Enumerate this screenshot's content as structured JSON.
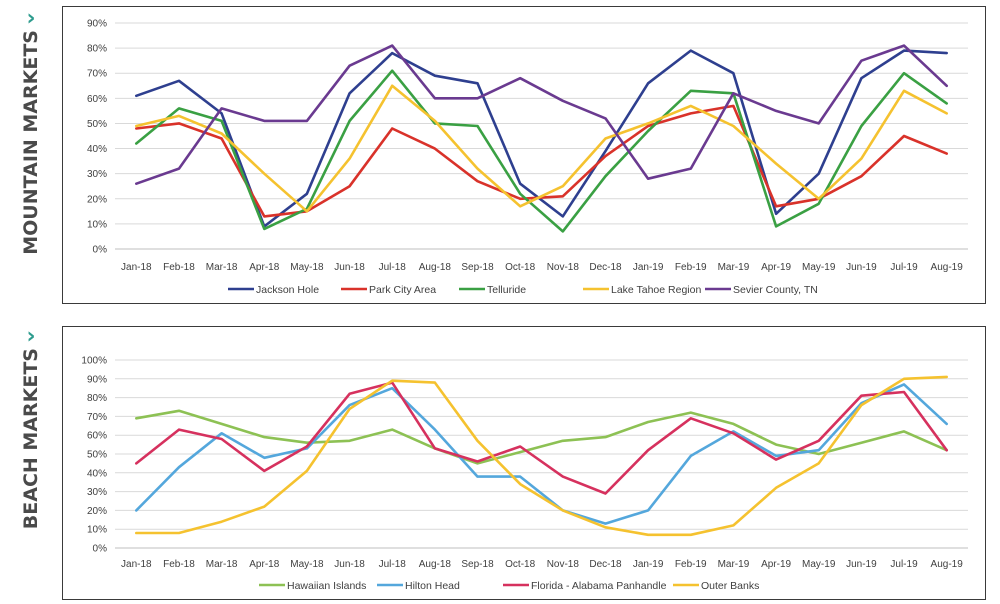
{
  "panels": {
    "top": {
      "label": "MOUNTAIN MARKETS"
    },
    "bottom": {
      "label": "BEACH MARKETS"
    }
  },
  "chart_data": [
    {
      "type": "line",
      "categories": [
        "Jan-18",
        "Feb-18",
        "Mar-18",
        "Apr-18",
        "May-18",
        "Jun-18",
        "Jul-18",
        "Aug-18",
        "Sep-18",
        "Oct-18",
        "Nov-18",
        "Dec-18",
        "Jan-19",
        "Feb-19",
        "Mar-19",
        "Apr-19",
        "May-19",
        "Jun-19",
        "Jul-19",
        "Aug-19"
      ],
      "ylim": [
        0,
        90
      ],
      "yticks": [
        "0%",
        "10%",
        "20%",
        "30%",
        "40%",
        "50%",
        "60%",
        "70%",
        "80%",
        "90%"
      ],
      "grid": true,
      "legend_position": "bottom",
      "series": [
        {
          "name": "Jackson Hole",
          "color": "#2e3f8f",
          "values": [
            61,
            67,
            54,
            9,
            22,
            62,
            78,
            69,
            66,
            26,
            13,
            39,
            66,
            79,
            70,
            14,
            30,
            68,
            79,
            78
          ]
        },
        {
          "name": "Park City Area",
          "color": "#d9322a",
          "values": [
            48,
            50,
            44,
            13,
            15,
            25,
            48,
            40,
            27,
            20,
            21,
            37,
            49,
            54,
            57,
            17,
            20,
            29,
            45,
            38
          ]
        },
        {
          "name": "Telluride",
          "color": "#3aa043",
          "values": [
            42,
            56,
            51,
            8,
            16,
            51,
            71,
            50,
            49,
            22,
            7,
            29,
            47,
            63,
            62,
            9,
            18,
            49,
            70,
            58
          ]
        },
        {
          "name": "Lake Tahoe Region",
          "color": "#f5c22f",
          "values": [
            49,
            53,
            46,
            30,
            15,
            36,
            65,
            51,
            32,
            17,
            25,
            44,
            50,
            57,
            49,
            34,
            20,
            36,
            63,
            54
          ]
        },
        {
          "name": "Sevier County, TN",
          "color": "#6a3a90",
          "values": [
            26,
            32,
            56,
            51,
            51,
            73,
            81,
            60,
            60,
            68,
            59,
            52,
            28,
            32,
            62,
            55,
            50,
            75,
            81,
            65
          ]
        }
      ]
    },
    {
      "type": "line",
      "categories": [
        "Jan-18",
        "Feb-18",
        "Mar-18",
        "Apr-18",
        "May-18",
        "Jun-18",
        "Jul-18",
        "Aug-18",
        "Sep-18",
        "Oct-18",
        "Nov-18",
        "Dec-18",
        "Jan-19",
        "Feb-19",
        "Mar-19",
        "Apr-19",
        "May-19",
        "Jun-19",
        "Jul-19",
        "Aug-19"
      ],
      "ylim": [
        0,
        100
      ],
      "yticks": [
        "0%",
        "10%",
        "20%",
        "30%",
        "40%",
        "50%",
        "60%",
        "70%",
        "80%",
        "90%",
        "100%"
      ],
      "grid": true,
      "legend_position": "bottom",
      "series": [
        {
          "name": "Hawaiian Islands",
          "color": "#8dc154",
          "values": [
            69,
            73,
            66,
            59,
            56,
            57,
            63,
            53,
            45,
            51,
            57,
            59,
            67,
            72,
            66,
            55,
            50,
            56,
            62,
            52
          ]
        },
        {
          "name": "Hilton Head",
          "color": "#54a7dc",
          "values": [
            20,
            43,
            61,
            48,
            53,
            76,
            85,
            63,
            38,
            38,
            20,
            13,
            20,
            49,
            62,
            49,
            52,
            77,
            87,
            66
          ]
        },
        {
          "name": "Florida - Alabama Panhandle",
          "color": "#d6315e",
          "values": [
            45,
            63,
            58,
            41,
            54,
            82,
            88,
            53,
            46,
            54,
            38,
            29,
            52,
            69,
            61,
            47,
            57,
            81,
            83,
            52
          ]
        },
        {
          "name": "Outer Banks",
          "color": "#f5c22f",
          "values": [
            8,
            8,
            14,
            22,
            41,
            74,
            89,
            88,
            57,
            34,
            20,
            11,
            7,
            7,
            12,
            32,
            45,
            76,
            90,
            91
          ]
        }
      ]
    }
  ]
}
